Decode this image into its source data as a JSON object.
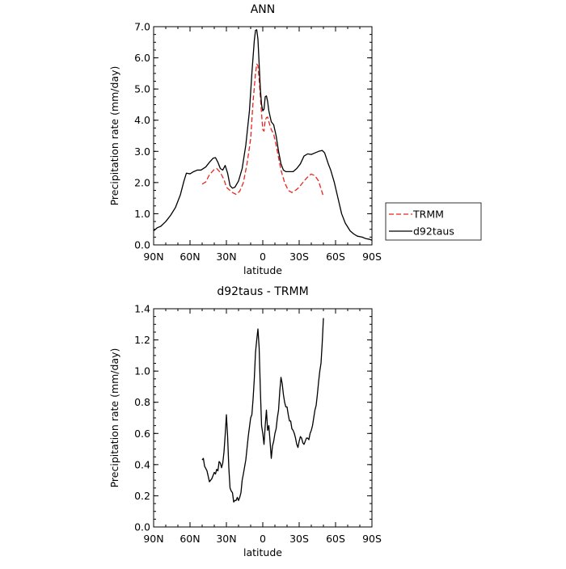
{
  "chart_data": [
    {
      "type": "line",
      "title": "ANN",
      "xlabel": "latitude",
      "ylabel": "Precipitation rate (mm/day)",
      "xlim": [
        90,
        -90
      ],
      "ylim": [
        0,
        7
      ],
      "xticks": [
        90,
        60,
        30,
        0,
        -30,
        -60,
        -90
      ],
      "xtick_labels": [
        "90N",
        "60N",
        "30N",
        "0",
        "30S",
        "60S",
        "90S"
      ],
      "yticks": [
        0,
        1,
        2,
        3,
        4,
        5,
        6,
        7
      ],
      "ytick_labels": [
        "0.0",
        "1.0",
        "2.0",
        "3.0",
        "4.0",
        "5.0",
        "6.0",
        "7.0"
      ],
      "legend_position": "outside-right",
      "series": [
        {
          "name": "TRMM",
          "color": "#e8251f",
          "dash": "dashed",
          "points": [
            [
              50,
              1.95
            ],
            [
              47,
              2.02
            ],
            [
              44,
              2.25
            ],
            [
              40,
              2.42
            ],
            [
              38,
              2.45
            ],
            [
              35,
              2.32
            ],
            [
              32,
              2.1
            ],
            [
              30,
              1.85
            ],
            [
              28,
              1.78
            ],
            [
              25,
              1.68
            ],
            [
              22,
              1.62
            ],
            [
              19,
              1.72
            ],
            [
              16,
              2.0
            ],
            [
              13,
              2.6
            ],
            [
              10,
              3.4
            ],
            [
              8,
              4.6
            ],
            [
              6,
              5.5
            ],
            [
              5,
              5.8
            ],
            [
              4,
              5.75
            ],
            [
              3,
              5.3
            ],
            [
              1,
              4.2
            ],
            [
              0,
              3.7
            ],
            [
              -1,
              3.65
            ],
            [
              -2,
              4.0
            ],
            [
              -3,
              4.08
            ],
            [
              -4,
              4.1
            ],
            [
              -5,
              3.95
            ],
            [
              -7,
              3.7
            ],
            [
              -9,
              3.55
            ],
            [
              -11,
              3.2
            ],
            [
              -13,
              2.8
            ],
            [
              -15,
              2.4
            ],
            [
              -18,
              2.0
            ],
            [
              -21,
              1.75
            ],
            [
              -24,
              1.68
            ],
            [
              -27,
              1.75
            ],
            [
              -30,
              1.85
            ],
            [
              -34,
              2.05
            ],
            [
              -38,
              2.22
            ],
            [
              -40,
              2.27
            ],
            [
              -43,
              2.22
            ],
            [
              -46,
              2.05
            ],
            [
              -48,
              1.8
            ],
            [
              -50,
              1.55
            ]
          ]
        },
        {
          "name": "d92taus",
          "color": "#000000",
          "dash": "solid",
          "points": [
            [
              90,
              0.45
            ],
            [
              87,
              0.55
            ],
            [
              84,
              0.6
            ],
            [
              80,
              0.75
            ],
            [
              76,
              0.95
            ],
            [
              72,
              1.2
            ],
            [
              68,
              1.6
            ],
            [
              65,
              2.05
            ],
            [
              63,
              2.3
            ],
            [
              60,
              2.28
            ],
            [
              57,
              2.35
            ],
            [
              54,
              2.4
            ],
            [
              51,
              2.4
            ],
            [
              47,
              2.5
            ],
            [
              44,
              2.65
            ],
            [
              41,
              2.78
            ],
            [
              39,
              2.8
            ],
            [
              37,
              2.65
            ],
            [
              35,
              2.45
            ],
            [
              33,
              2.4
            ],
            [
              31,
              2.55
            ],
            [
              29,
              2.3
            ],
            [
              27,
              1.9
            ],
            [
              25,
              1.82
            ],
            [
              23,
              1.85
            ],
            [
              20,
              2.05
            ],
            [
              17,
              2.45
            ],
            [
              14,
              3.2
            ],
            [
              11,
              4.3
            ],
            [
              9,
              5.5
            ],
            [
              7,
              6.55
            ],
            [
              6,
              6.88
            ],
            [
              5,
              6.9
            ],
            [
              4,
              6.6
            ],
            [
              3,
              5.8
            ],
            [
              2,
              5.0
            ],
            [
              1,
              4.5
            ],
            [
              0,
              4.3
            ],
            [
              -1,
              4.35
            ],
            [
              -2,
              4.75
            ],
            [
              -3,
              4.78
            ],
            [
              -4,
              4.6
            ],
            [
              -5,
              4.3
            ],
            [
              -7,
              3.95
            ],
            [
              -9,
              3.85
            ],
            [
              -11,
              3.5
            ],
            [
              -13,
              3.0
            ],
            [
              -15,
              2.6
            ],
            [
              -17,
              2.4
            ],
            [
              -19,
              2.35
            ],
            [
              -22,
              2.35
            ],
            [
              -25,
              2.35
            ],
            [
              -28,
              2.45
            ],
            [
              -31,
              2.6
            ],
            [
              -34,
              2.85
            ],
            [
              -37,
              2.92
            ],
            [
              -40,
              2.9
            ],
            [
              -43,
              2.95
            ],
            [
              -46,
              3.0
            ],
            [
              -49,
              3.03
            ],
            [
              -51,
              2.95
            ],
            [
              -54,
              2.6
            ],
            [
              -56,
              2.4
            ],
            [
              -59,
              2.0
            ],
            [
              -62,
              1.5
            ],
            [
              -65,
              1.0
            ],
            [
              -68,
              0.7
            ],
            [
              -72,
              0.45
            ],
            [
              -75,
              0.35
            ],
            [
              -78,
              0.28
            ],
            [
              -82,
              0.25
            ],
            [
              -85,
              0.2
            ],
            [
              -88,
              0.18
            ],
            [
              -90,
              0.15
            ]
          ]
        }
      ]
    },
    {
      "type": "line",
      "title": "d92taus - TRMM",
      "xlabel": "latitude",
      "ylabel": "Precipitation rate (mm/day)",
      "xlim": [
        90,
        -90
      ],
      "ylim": [
        0,
        1.4
      ],
      "xticks": [
        90,
        60,
        30,
        0,
        -30,
        -60,
        -90
      ],
      "xtick_labels": [
        "90N",
        "60N",
        "30N",
        "0",
        "30S",
        "60S",
        "90S"
      ],
      "yticks": [
        0,
        0.2,
        0.4,
        0.6,
        0.8,
        1.0,
        1.2,
        1.4
      ],
      "ytick_labels": [
        "0.0",
        "0.2",
        "0.4",
        "0.6",
        "0.8",
        "1.0",
        "1.2",
        "1.4"
      ],
      "series": [
        {
          "color": "#000000",
          "dash": "solid",
          "points": [
            [
              50,
              0.43
            ],
            [
              49,
              0.44
            ],
            [
              48,
              0.39
            ],
            [
              46,
              0.36
            ],
            [
              44,
              0.29
            ],
            [
              42,
              0.31
            ],
            [
              40,
              0.35
            ],
            [
              39,
              0.34
            ],
            [
              38,
              0.37
            ],
            [
              37,
              0.36
            ],
            [
              36,
              0.42
            ],
            [
              35,
              0.41
            ],
            [
              34,
              0.38
            ],
            [
              33,
              0.41
            ],
            [
              32,
              0.48
            ],
            [
              31,
              0.59
            ],
            [
              30,
              0.72
            ],
            [
              29,
              0.58
            ],
            [
              28,
              0.38
            ],
            [
              27,
              0.25
            ],
            [
              26,
              0.23
            ],
            [
              25,
              0.22
            ],
            [
              24,
              0.16
            ],
            [
              23,
              0.17
            ],
            [
              22,
              0.17
            ],
            [
              21,
              0.19
            ],
            [
              20,
              0.17
            ],
            [
              19,
              0.19
            ],
            [
              18,
              0.22
            ],
            [
              17,
              0.3
            ],
            [
              16,
              0.34
            ],
            [
              14,
              0.43
            ],
            [
              12,
              0.58
            ],
            [
              10,
              0.7
            ],
            [
              9,
              0.72
            ],
            [
              8,
              0.82
            ],
            [
              7,
              0.95
            ],
            [
              6,
              1.12
            ],
            [
              5,
              1.2
            ],
            [
              4,
              1.27
            ],
            [
              3,
              1.15
            ],
            [
              2,
              0.88
            ],
            [
              1,
              0.65
            ],
            [
              0,
              0.6
            ],
            [
              -1,
              0.53
            ],
            [
              -2,
              0.65
            ],
            [
              -3,
              0.75
            ],
            [
              -4,
              0.62
            ],
            [
              -5,
              0.65
            ],
            [
              -6,
              0.55
            ],
            [
              -7,
              0.44
            ],
            [
              -8,
              0.52
            ],
            [
              -9,
              0.55
            ],
            [
              -10,
              0.6
            ],
            [
              -11,
              0.63
            ],
            [
              -12,
              0.7
            ],
            [
              -13,
              0.75
            ],
            [
              -14,
              0.87
            ],
            [
              -15,
              0.96
            ],
            [
              -16,
              0.92
            ],
            [
              -17,
              0.85
            ],
            [
              -18,
              0.8
            ],
            [
              -19,
              0.77
            ],
            [
              -20,
              0.77
            ],
            [
              -21,
              0.72
            ],
            [
              -22,
              0.68
            ],
            [
              -23,
              0.68
            ],
            [
              -24,
              0.63
            ],
            [
              -25,
              0.62
            ],
            [
              -26,
              0.6
            ],
            [
              -27,
              0.57
            ],
            [
              -28,
              0.53
            ],
            [
              -29,
              0.51
            ],
            [
              -30,
              0.55
            ],
            [
              -31,
              0.58
            ],
            [
              -32,
              0.57
            ],
            [
              -33,
              0.54
            ],
            [
              -34,
              0.53
            ],
            [
              -35,
              0.55
            ],
            [
              -36,
              0.57
            ],
            [
              -37,
              0.57
            ],
            [
              -38,
              0.56
            ],
            [
              -39,
              0.6
            ],
            [
              -40,
              0.62
            ],
            [
              -41,
              0.65
            ],
            [
              -42,
              0.7
            ],
            [
              -43,
              0.75
            ],
            [
              -44,
              0.78
            ],
            [
              -45,
              0.85
            ],
            [
              -46,
              0.93
            ],
            [
              -47,
              1.0
            ],
            [
              -48,
              1.05
            ],
            [
              -49,
              1.18
            ],
            [
              -50,
              1.34
            ]
          ]
        }
      ]
    }
  ]
}
